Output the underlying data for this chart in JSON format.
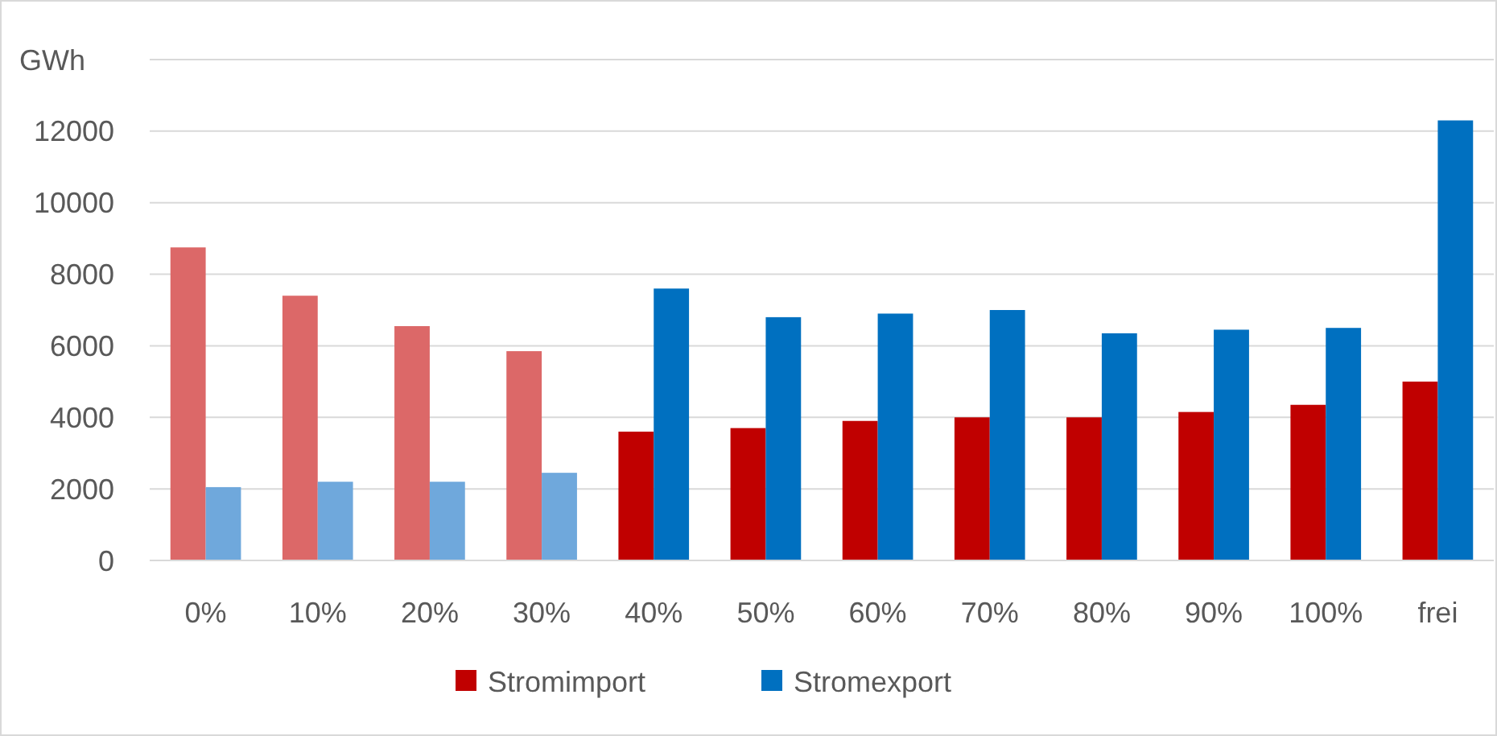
{
  "chart_data": {
    "type": "bar",
    "ylabel": "GWh",
    "categories": [
      "0%",
      "10%",
      "20%",
      "30%",
      "40%",
      "50%",
      "60%",
      "70%",
      "80%",
      "90%",
      "100%",
      "frei"
    ],
    "series": [
      {
        "name": "Stromimport",
        "color": "#c00000",
        "colors": [
          "#dc6868",
          "#dc6868",
          "#dc6868",
          "#dc6868",
          "#c00000",
          "#c00000",
          "#c00000",
          "#c00000",
          "#c00000",
          "#c00000",
          "#c00000",
          "#c00000"
        ],
        "values": [
          8750,
          7400,
          6550,
          5850,
          3600,
          3700,
          3900,
          4000,
          4000,
          4150,
          4350,
          5000
        ]
      },
      {
        "name": "Stromexport",
        "color": "#0070c0",
        "colors": [
          "#6fa8dc",
          "#6fa8dc",
          "#6fa8dc",
          "#6fa8dc",
          "#0070c0",
          "#0070c0",
          "#0070c0",
          "#0070c0",
          "#0070c0",
          "#0070c0",
          "#0070c0",
          "#0070c0"
        ],
        "values": [
          2050,
          2200,
          2200,
          2450,
          7600,
          6800,
          6900,
          7000,
          6350,
          6450,
          6500,
          12300
        ]
      }
    ],
    "ylim": [
      0,
      14000
    ],
    "yticks": [
      0,
      2000,
      4000,
      6000,
      8000,
      10000,
      12000,
      {
        "value": 14000,
        "label": null
      }
    ],
    "grid": "y",
    "legend": "bottom"
  }
}
